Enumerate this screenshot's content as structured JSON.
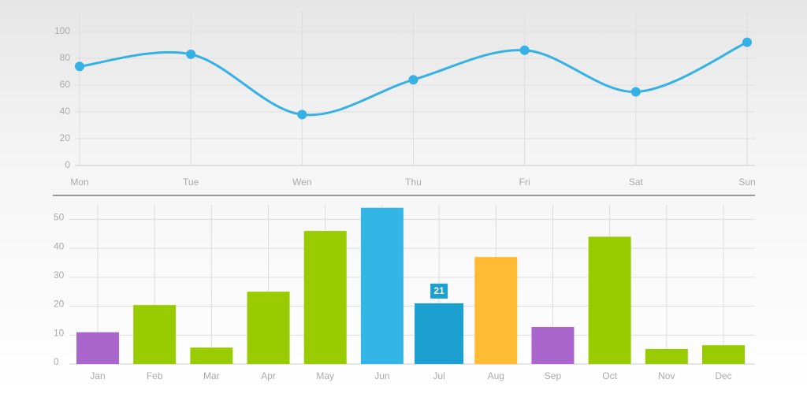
{
  "chart_data": [
    {
      "type": "line",
      "categories": [
        "Mon",
        "Tue",
        "Wen",
        "Thu",
        "Fri",
        "Sat",
        "Sun"
      ],
      "values": [
        74,
        83,
        38,
        64,
        86,
        55,
        92
      ],
      "color": "#35b1e5",
      "ylim": [
        0,
        100
      ],
      "yticks": [
        0,
        20,
        40,
        60,
        80,
        100
      ],
      "grid": true,
      "smooth": true
    },
    {
      "type": "bar",
      "categories": [
        "Jan",
        "Feb",
        "Mar",
        "Apr",
        "May",
        "Jun",
        "Jul",
        "Aug",
        "Sep",
        "Oct",
        "Nov",
        "Dec"
      ],
      "values": [
        11,
        20.4,
        5.7,
        25,
        46,
        54,
        21,
        37,
        12.8,
        44,
        5.2,
        6.5
      ],
      "colors": [
        "#aa66cc",
        "#99cc00",
        "#99cc00",
        "#99cc00",
        "#99cc00",
        "#33b5e5",
        "#1ba0cf",
        "#ffbb33",
        "#aa66cc",
        "#99cc00",
        "#99cc00",
        "#99cc00"
      ],
      "labeled_index": 6,
      "ylim": [
        0,
        55
      ],
      "yticks": [
        0,
        10,
        20,
        30,
        40,
        50
      ],
      "grid": true
    }
  ]
}
